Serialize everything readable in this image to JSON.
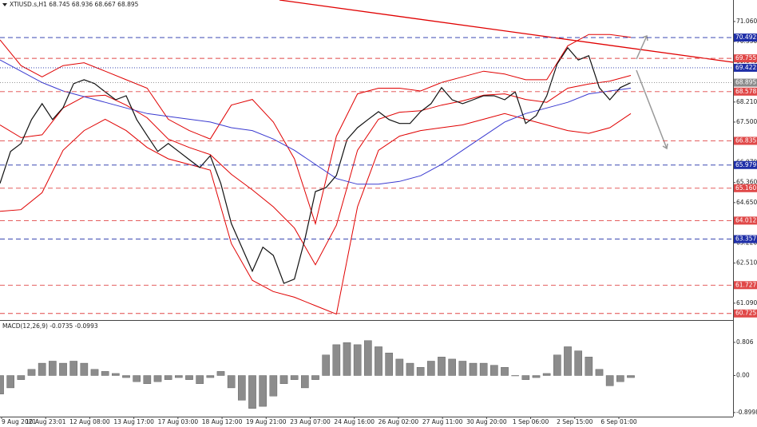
{
  "chart_data": [
    {
      "type": "line",
      "title": "XTIUSD.s,H1  68.745 68.936 68.667 68.895",
      "ylim": [
        60.52,
        71.68
      ],
      "yticks": [
        {
          "value": 71.06,
          "label": "71.060"
        },
        {
          "value": 70.35,
          "label": "70.350"
        },
        {
          "value": 69.64,
          "label": "69.640"
        },
        {
          "value": 68.21,
          "label": "68.210"
        },
        {
          "value": 67.5,
          "label": "67.500"
        },
        {
          "value": 66.07,
          "label": "66.070"
        },
        {
          "value": 65.36,
          "label": "65.360"
        },
        {
          "value": 64.65,
          "label": "64.650"
        },
        {
          "value": 63.22,
          "label": "63.220"
        },
        {
          "value": 62.51,
          "label": "62.510"
        },
        {
          "value": 61.09,
          "label": "61.090"
        }
      ],
      "x_labels": [
        "9 Aug 2021",
        "10 Aug 23:01",
        "12 Aug 08:00",
        "13 Aug 17:00",
        "17 Aug 03:00",
        "18 Aug 12:00",
        "19 Aug 21:00",
        "23 Aug 07:00",
        "24 Aug 16:00",
        "26 Aug 02:00",
        "27 Aug 11:00",
        "30 Aug 20:00",
        "1 Sep 06:00",
        "2 Sep 15:00",
        "6 Sep 01:00"
      ],
      "series": [
        {
          "color": "#e00000",
          "values": [
            70.41,
            69.5,
            69.1,
            69.5,
            69.6,
            69.3,
            69.0,
            68.7,
            67.6,
            67.2,
            66.9,
            68.1,
            68.3,
            67.5,
            66.2,
            63.9,
            67.0,
            68.5,
            68.7,
            68.7,
            68.6,
            68.9,
            69.1,
            69.3,
            69.2,
            69.0,
            69.0,
            70.2,
            70.6,
            70.6,
            70.5
          ]
        },
        {
          "color": "#e00000",
          "values": [
            64.34,
            64.4,
            65.0,
            66.5,
            67.2,
            67.6,
            67.2,
            66.6,
            66.2,
            66.0,
            65.8,
            63.2,
            61.9,
            61.5,
            61.3,
            61.0,
            60.7,
            64.5,
            66.5,
            67.0,
            67.2,
            67.3,
            67.4,
            67.6,
            67.8,
            67.6,
            67.4,
            67.2,
            67.1,
            67.3,
            67.8
          ]
        },
        {
          "color": "#e00000",
          "values": [
            67.4,
            66.95,
            67.05,
            68.0,
            68.4,
            68.45,
            68.1,
            67.65,
            66.9,
            66.6,
            66.35,
            65.65,
            65.1,
            64.5,
            63.75,
            62.45,
            63.85,
            66.5,
            67.6,
            67.85,
            67.9,
            68.1,
            68.25,
            68.45,
            68.5,
            68.3,
            68.2,
            68.7,
            68.85,
            68.95,
            69.15
          ]
        },
        {
          "color": "#3a3ad0",
          "values": [
            69.7,
            69.3,
            68.9,
            68.6,
            68.4,
            68.2,
            68.0,
            67.8,
            67.7,
            67.6,
            67.5,
            67.3,
            67.2,
            66.9,
            66.5,
            66.0,
            65.5,
            65.3,
            65.3,
            65.4,
            65.6,
            66.0,
            66.5,
            67.0,
            67.5,
            67.8,
            68.0,
            68.2,
            68.5,
            68.6,
            68.7
          ]
        },
        {
          "color": "#111111",
          "values": [
            65.33,
            66.46,
            66.74,
            67.59,
            68.15,
            67.59,
            68.01,
            68.86,
            69.0,
            68.86,
            68.57,
            68.29,
            68.43,
            67.59,
            67.02,
            66.46,
            66.74,
            66.46,
            66.17,
            65.89,
            66.31,
            65.33,
            63.91,
            63.07,
            62.22,
            63.07,
            62.78,
            61.79,
            61.94,
            63.35,
            65.04,
            65.18,
            65.61,
            66.88,
            67.3,
            67.59,
            67.87,
            67.59,
            67.45,
            67.45,
            67.87,
            68.15,
            68.72,
            68.29,
            68.15,
            68.29,
            68.43,
            68.43,
            68.29,
            68.57,
            67.45,
            67.73,
            68.43,
            69.56,
            70.13,
            69.7,
            69.85,
            68.72,
            68.29,
            68.72,
            68.895
          ]
        }
      ],
      "levels": [
        {
          "value": 70.492,
          "label": "70.492",
          "color": "#1f2fa8",
          "style": "dashed"
        },
        {
          "value": 69.755,
          "label": "69.755",
          "color": "#e04848",
          "style": "dashed"
        },
        {
          "value": 69.422,
          "label": "69.422",
          "color": "#1f2fa8",
          "style": "dotted"
        },
        {
          "value": 68.895,
          "label": "68.895",
          "color": "#8a8a8a",
          "style": "dotted"
        },
        {
          "value": 68.578,
          "label": "68.578",
          "color": "#e04848",
          "style": "dashed"
        },
        {
          "value": 66.835,
          "label": "66.835",
          "color": "#e04848",
          "style": "dashed"
        },
        {
          "value": 65.979,
          "label": "65.979",
          "color": "#1f2fa8",
          "style": "dashed"
        },
        {
          "value": 65.16,
          "label": "65.160",
          "color": "#e04848",
          "style": "dashed"
        },
        {
          "value": 64.012,
          "label": "64.012",
          "color": "#e04848",
          "style": "dashed"
        },
        {
          "value": 63.357,
          "label": "63.357",
          "color": "#1f2fa8",
          "style": "dashed"
        },
        {
          "value": 61.727,
          "label": "61.727",
          "color": "#e04848",
          "style": "dashed"
        },
        {
          "value": 60.725,
          "label": "60.725",
          "color": "#e04848",
          "style": "dashed"
        }
      ]
    },
    {
      "type": "bar",
      "title": "MACD(12,26,9) -0.0735 -0.0993",
      "ylim": [
        -0.98,
        1.31
      ],
      "yticks": [
        0.806,
        {
          "value": 0,
          "label": "0.00"
        },
        -0.8998
      ],
      "color": "#8c8c8c",
      "values": [
        -0.45,
        -0.3,
        -0.1,
        0.15,
        0.3,
        0.35,
        0.3,
        0.35,
        0.3,
        0.15,
        0.1,
        0.05,
        -0.05,
        -0.15,
        -0.2,
        -0.15,
        -0.1,
        -0.05,
        -0.1,
        -0.2,
        -0.05,
        0.1,
        -0.3,
        -0.6,
        -0.8,
        -0.75,
        -0.5,
        -0.2,
        -0.1,
        -0.3,
        -0.1,
        0.5,
        0.75,
        0.8,
        0.75,
        0.85,
        0.7,
        0.55,
        0.4,
        0.3,
        0.2,
        0.35,
        0.45,
        0.4,
        0.35,
        0.3,
        0.3,
        0.25,
        0.2,
        0.0,
        -0.1,
        -0.05,
        0.05,
        0.5,
        0.7,
        0.6,
        0.45,
        0.15,
        -0.25,
        -0.15,
        -0.05
      ]
    }
  ]
}
